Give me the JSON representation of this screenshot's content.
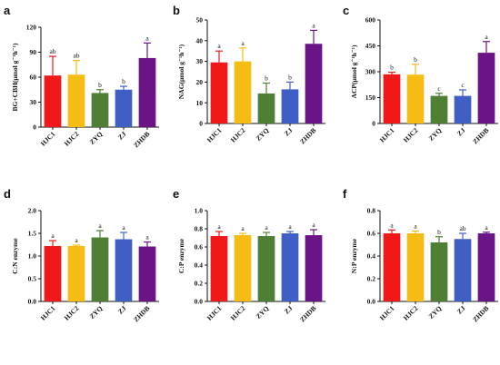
{
  "colors": [
    "#f01818",
    "#f5bc13",
    "#4f7f34",
    "#3f5fc4",
    "#6a1485"
  ],
  "chart_data": [
    {
      "panel": "a",
      "type": "bar",
      "ylabel": "BG+CBH(μmol g⁻¹h⁻¹)",
      "categories": [
        "HJC1",
        "HJC2",
        "ZYQ",
        "ZJ",
        "ZHDB"
      ],
      "values": [
        62,
        63,
        41,
        45,
        83
      ],
      "errors": [
        23,
        17,
        4,
        4,
        18
      ],
      "letters": [
        "ab",
        "ab",
        "b",
        "b",
        "a"
      ],
      "ylim": [
        0,
        120
      ],
      "yticks": [
        "0",
        "30",
        "60",
        "90",
        "120"
      ]
    },
    {
      "panel": "b",
      "type": "bar",
      "ylabel": "NAG(μmol g⁻¹h⁻¹)",
      "categories": [
        "HJC1",
        "HJC2",
        "ZYQ",
        "ZJ",
        "ZHDB"
      ],
      "values": [
        29.5,
        30,
        14.5,
        16.5,
        38.5
      ],
      "errors": [
        5.5,
        6.5,
        5,
        3.5,
        6.5
      ],
      "letters": [
        "a",
        "a",
        "b",
        "b",
        "a"
      ],
      "ylim": [
        0,
        50
      ],
      "yticks": [
        "0",
        "10",
        "20",
        "30",
        "40",
        "50"
      ]
    },
    {
      "panel": "c",
      "type": "bar",
      "ylabel": "ACP(μmol g⁻¹h⁻¹)",
      "categories": [
        "HJC1",
        "HJC2",
        "ZYQ",
        "ZJ",
        "ZHDB"
      ],
      "values": [
        285,
        283,
        160,
        160,
        410
      ],
      "errors": [
        12,
        60,
        15,
        35,
        65
      ],
      "letters": [
        "b",
        "b",
        "c",
        "c",
        "a"
      ],
      "ylim": [
        0,
        600
      ],
      "yticks": [
        "0",
        "150",
        "300",
        "450",
        "600"
      ]
    },
    {
      "panel": "d",
      "type": "bar",
      "ylabel": "C:N enzyme",
      "categories": [
        "HJC1",
        "HJC2",
        "ZYQ",
        "ZJ",
        "ZHDB"
      ],
      "values": [
        1.22,
        1.22,
        1.41,
        1.37,
        1.21
      ],
      "errors": [
        0.12,
        0.02,
        0.15,
        0.15,
        0.1
      ],
      "letters": [
        "a",
        "a",
        "a",
        "a",
        "a"
      ],
      "ylim": [
        0,
        2.0
      ],
      "yticks": [
        "0.0",
        "0.5",
        "1.0",
        "1.5",
        "2.0"
      ]
    },
    {
      "panel": "e",
      "type": "bar",
      "ylabel": "C:P enzyme",
      "categories": [
        "HJC1",
        "HJC2",
        "ZYQ",
        "ZJ",
        "ZHDB"
      ],
      "values": [
        0.72,
        0.73,
        0.72,
        0.75,
        0.73
      ],
      "errors": [
        0.05,
        0.02,
        0.04,
        0.02,
        0.06
      ],
      "letters": [
        "a",
        "a",
        "a",
        "a",
        "a"
      ],
      "ylim": [
        0,
        1.0
      ],
      "yticks": [
        "0.0",
        "0.2",
        "0.4",
        "0.6",
        "0.8",
        "1.0"
      ]
    },
    {
      "panel": "f",
      "type": "bar",
      "ylabel": "N:P enzyme",
      "categories": [
        "HJC1",
        "HJC2",
        "ZYQ",
        "ZJ",
        "ZHDB"
      ],
      "values": [
        0.6,
        0.6,
        0.52,
        0.55,
        0.6
      ],
      "errors": [
        0.03,
        0.02,
        0.05,
        0.05,
        0.01
      ],
      "letters": [
        "a",
        "a",
        "b",
        "ab",
        "a"
      ],
      "ylim": [
        0,
        0.8
      ],
      "yticks": [
        "0.0",
        "0.2",
        "0.4",
        "0.6",
        "0.8"
      ]
    }
  ]
}
